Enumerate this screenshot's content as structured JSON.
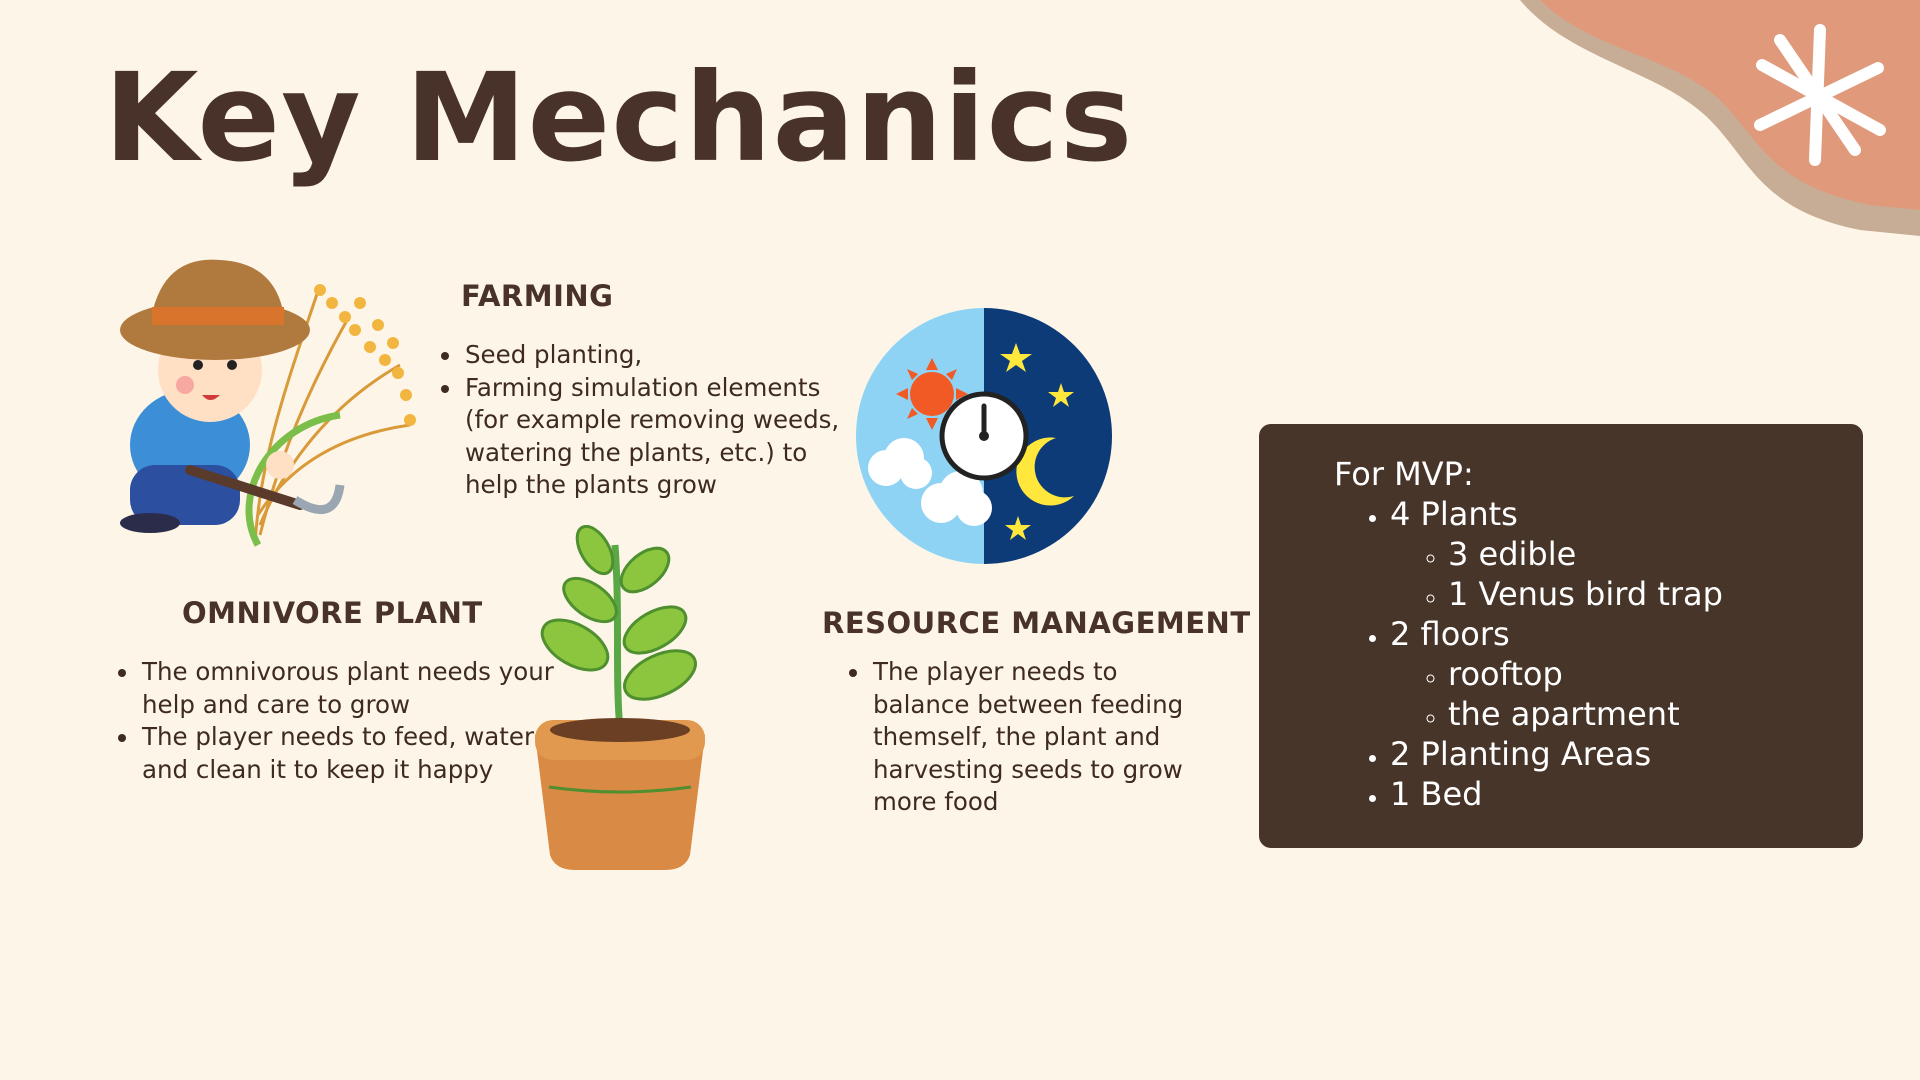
{
  "title": "Key Mechanics",
  "farming": {
    "heading": "FARMING",
    "bullets": [
      "Seed planting,",
      "Farming simulation elements (for example removing weeds, watering the plants, etc.) to help the plants grow"
    ]
  },
  "omnivore_plant": {
    "heading": "OMNIVORE PLANT",
    "bullets": [
      "The omnivorous plant needs your help and care to grow",
      "The player needs to feed, water and clean it to keep it happy"
    ]
  },
  "resource_management": {
    "heading": "RESOURCE MANAGEMENT",
    "bullets": [
      "The player needs to balance between feeding themself, the plant and harvesting seeds to grow more food"
    ]
  },
  "mvp": {
    "title": "For MVP:",
    "items": [
      {
        "label": "4 Plants",
        "subitems": [
          "3 edible",
          "1 Venus bird trap"
        ]
      },
      {
        "label": "2 floors",
        "subitems": [
          "rooftop",
          "the apartment"
        ]
      },
      {
        "label": "2 Planting Areas"
      },
      {
        "label": "1 Bed"
      }
    ]
  },
  "illustrations": {
    "farmer": "farmer-with-rice-illustration",
    "day_night": "day-night-clock-icon",
    "plant": "potted-plant-illustration",
    "decor": "corner-star-decoration"
  },
  "colors": {
    "background": "#fdf6e8",
    "text_dark": "#48322a",
    "mvp_panel": "#48352a",
    "accent_terracotta": "#e0997a"
  }
}
